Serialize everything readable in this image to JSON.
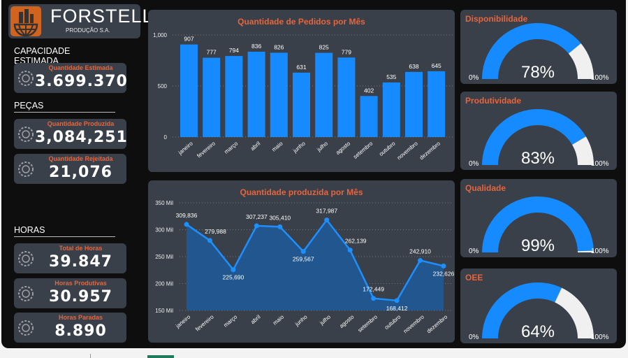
{
  "brand": {
    "name": "FORSTELL",
    "subtitle": "PRODUÇÃO S.A.",
    "logo_color": "#d0631d"
  },
  "sections": {
    "capacity": "CAPACIDADE  ESTIMADA",
    "parts": "PEÇAS",
    "hours": "HORAS"
  },
  "kpis": [
    {
      "title": "Quantidade Estimada",
      "value": "3.699.370",
      "icon": "gear-play-icon"
    },
    {
      "title": "Quantidade Produzida",
      "value": "3,084,251",
      "icon": "gears-icon"
    },
    {
      "title": "Quantidade Rejeitada",
      "value": "21,076",
      "icon": "broken-gear-hammer-icon"
    },
    {
      "title": "Total de Horas",
      "value": "39.847",
      "icon": "clock-calculator-icon"
    },
    {
      "title": "Horas Produtivas",
      "value": "30.957",
      "icon": "clock-coins-icon"
    },
    {
      "title": "Horas Paradas",
      "value": "8.890",
      "icon": "clock-stop-icon"
    }
  ],
  "colors": {
    "accent": "#e8643c",
    "bar": "#168aff",
    "gauge_rest": "#f0f0f0",
    "panel": "#394049"
  },
  "chart_data": [
    {
      "type": "bar",
      "title": "Quantidade de Pedidos por Mês",
      "categories": [
        "janeiro",
        "fevereiro",
        "março",
        "abril",
        "maio",
        "junho",
        "julho",
        "agosto",
        "setembro",
        "outubro",
        "novembro",
        "dezembro"
      ],
      "values": [
        907,
        777,
        794,
        836,
        826,
        631,
        825,
        779,
        402,
        535,
        638,
        645
      ],
      "ylim": [
        0,
        1000
      ],
      "yticks": [
        "0",
        "500",
        "1,000"
      ],
      "grid": true
    },
    {
      "type": "area",
      "title": "Quantidade produzida por Mês",
      "categories": [
        "janeiro",
        "fevereiro",
        "março",
        "abril",
        "maio",
        "junho",
        "julho",
        "agosto",
        "setembro",
        "outubro",
        "novembro",
        "dezembro"
      ],
      "values": [
        309836,
        279988,
        225690,
        307237,
        305410,
        259567,
        317987,
        262139,
        172449,
        168412,
        242910,
        232626
      ],
      "labels": [
        "309,836",
        "279,988",
        "225,690",
        "307,237",
        "305,410",
        "259,567",
        "317,987",
        "262,139",
        "172,449",
        "168,412",
        "242,910",
        "232,626"
      ],
      "ylim": [
        150000,
        350000
      ],
      "yticks": [
        "150 Mil",
        "200 Mil",
        "250 Mil",
        "300 Mil",
        "350 Mil"
      ],
      "grid": true
    }
  ],
  "gauges": [
    {
      "title": "Disponibilidade",
      "value": 78,
      "label": "78%",
      "min": "0%",
      "max": "100%"
    },
    {
      "title": "Produtividade",
      "value": 83,
      "label": "83%",
      "min": "0%",
      "max": "100%"
    },
    {
      "title": "Qualidade",
      "value": 99,
      "label": "99%",
      "min": "0%",
      "max": "100%"
    },
    {
      "title": "OEE",
      "value": 64,
      "label": "64%",
      "min": "0%",
      "max": "100%"
    }
  ]
}
